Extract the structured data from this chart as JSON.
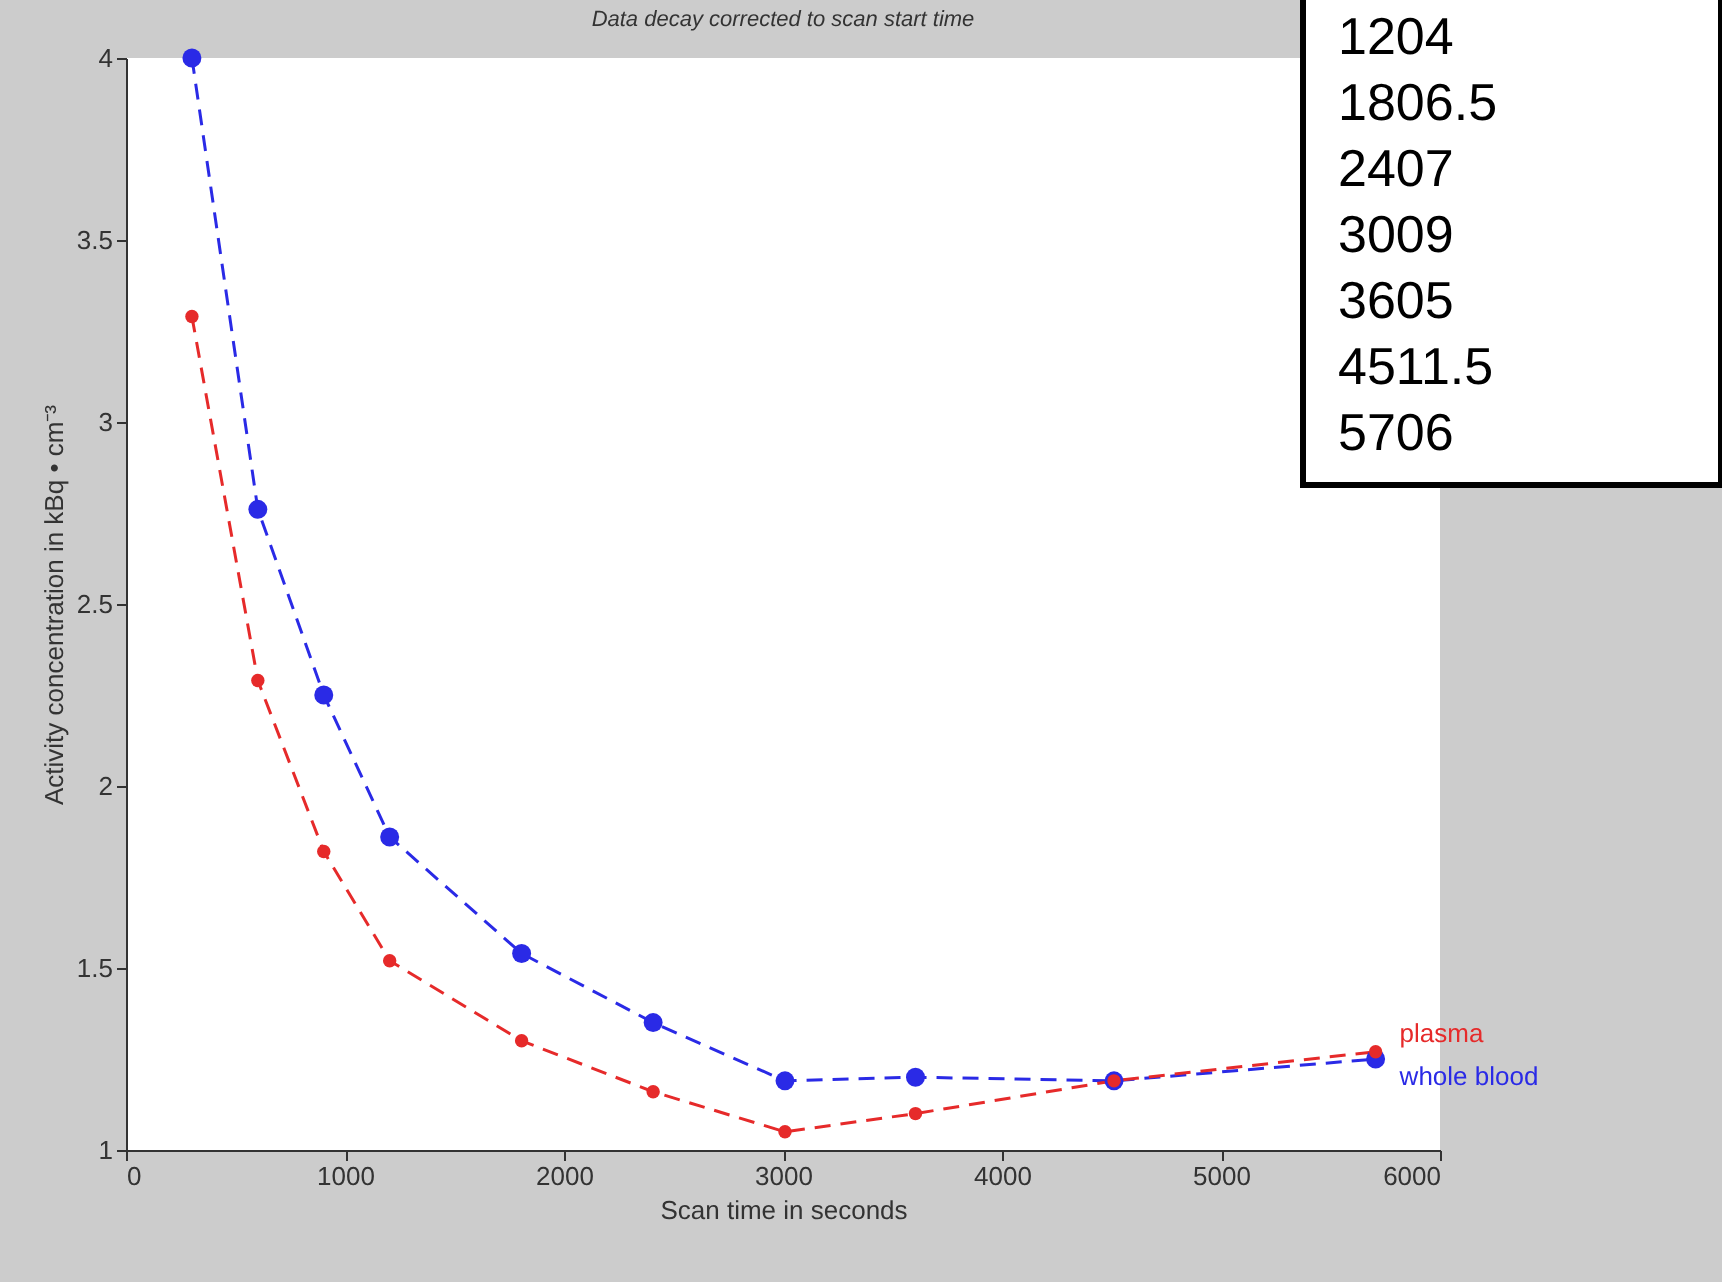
{
  "chart_data": {
    "type": "line",
    "title": "Data decay corrected to scan start time",
    "xlabel": "Scan time in seconds",
    "ylabel": "Activity concentration in kBq • cm⁻³",
    "x": [
      301,
      602,
      903,
      1204,
      1806.5,
      2407,
      3009,
      3605,
      4511.5,
      5706
    ],
    "series": [
      {
        "name": "whole blood",
        "color": "#2a2ae6",
        "values": [
          4.0,
          2.76,
          2.25,
          1.86,
          1.54,
          1.35,
          1.19,
          1.2,
          1.19,
          1.25
        ]
      },
      {
        "name": "plasma",
        "color": "#e62a2a",
        "values": [
          3.29,
          2.29,
          1.82,
          1.52,
          1.3,
          1.16,
          1.05,
          1.1,
          1.19,
          1.27
        ]
      }
    ],
    "xlim": [
      0,
      6000
    ],
    "xticks": [
      0,
      1000,
      2000,
      3000,
      4000,
      5000,
      6000
    ],
    "ylim": [
      1,
      4
    ],
    "yticks": [
      1,
      1.5,
      2,
      2.5,
      3,
      3.5,
      4
    ],
    "grid": false,
    "legend": false,
    "marker": "circle",
    "line_style": "dashed",
    "annotations": [
      "1204",
      "1806.5",
      "2407",
      "3009",
      "3605",
      "4511.5",
      "5706"
    ]
  }
}
